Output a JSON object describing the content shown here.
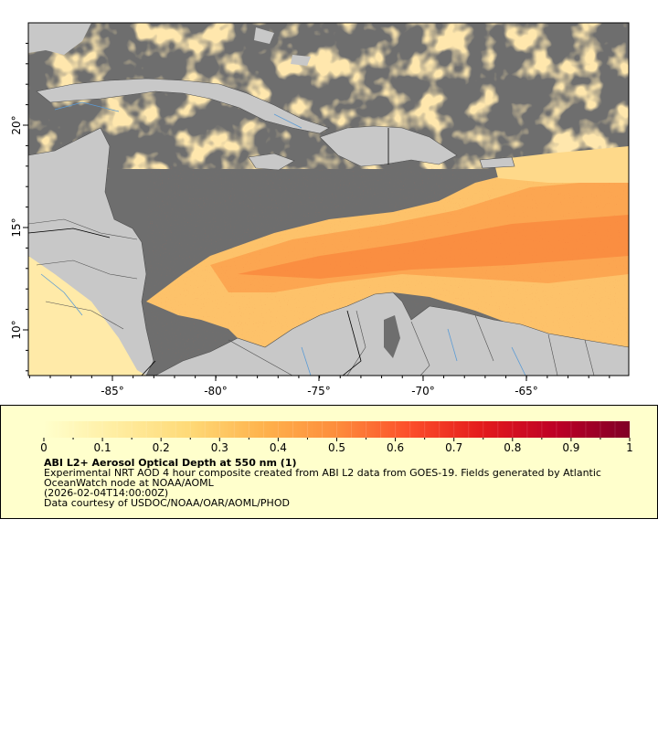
{
  "map": {
    "longitude_ticks": [
      "-85°",
      "-80°",
      "-75°",
      "-70°",
      "-65°"
    ],
    "latitude_ticks": [
      "10°",
      "15°",
      "20°"
    ],
    "colors": {
      "land": "#c8c8c8",
      "no_data": "#6e6e6e",
      "rivers": "#5b9bd5",
      "borders": "#505050"
    }
  },
  "legend": {
    "scale_labels": [
      "0",
      "0.1",
      "0.2",
      "0.3",
      "0.4",
      "0.5",
      "0.6",
      "0.7",
      "0.8",
      "0.9",
      "1"
    ],
    "colormap": [
      "#ffffcc",
      "#ffeda0",
      "#fed976",
      "#feb24c",
      "#fd8d3c",
      "#fc4e2a",
      "#e31a1c",
      "#bd0026",
      "#800026"
    ],
    "title": "ABI L2+ Aerosol Optical Depth at 550 nm (1)",
    "description_line1": "Experimental NRT AOD 4 hour composite created from ABI L2 data from GOES-19. Fields generated by Atlantic",
    "description_line2": "OceanWatch node at NOAA/AOML",
    "timestamp": "(2026-02-04T14:00:00Z)",
    "credit": "Data courtesy of USDOC/NOAA/OAR/AOML/PHOD"
  }
}
